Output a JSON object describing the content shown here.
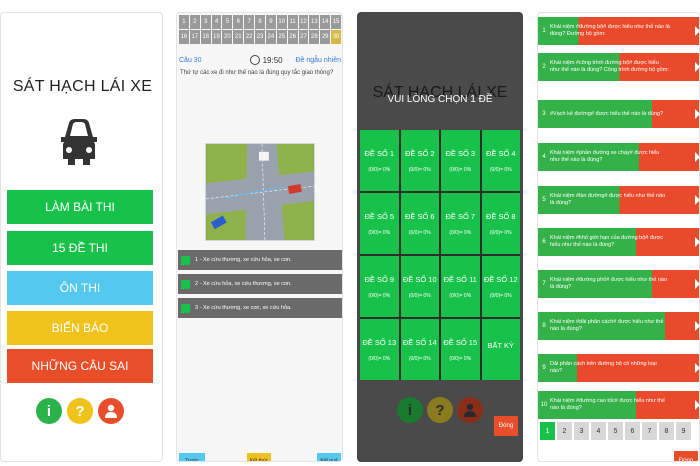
{
  "colors": {
    "green": "#18c24a",
    "cyan": "#55c8f0",
    "yellow": "#f0c21c",
    "red": "#e84e2a",
    "info_green": "#2cb24a",
    "help_yellow": "#f0c21c",
    "user_red": "#e84e2a"
  },
  "menu_screen": {
    "title": "SÁT HẠCH LÁI XE",
    "icons": [
      "car-icon",
      "info-icon",
      "help-icon",
      "user-icon"
    ],
    "buttons": [
      {
        "label": "LÀM BÀI THI",
        "color": "#18c24a"
      },
      {
        "label": "15 ĐỀ THI",
        "color": "#18c24a"
      },
      {
        "label": "ÔN THI",
        "color": "#55c8f0"
      },
      {
        "label": "BIỂN BÁO",
        "color": "#f0c21c"
      },
      {
        "label": "NHỮNG CÂU SAI",
        "color": "#e84e2a"
      }
    ],
    "circle_labels": [
      "i",
      "?",
      ""
    ]
  },
  "question_screen": {
    "grid_numbers": [
      "1",
      "2",
      "3",
      "4",
      "5",
      "6",
      "7",
      "8",
      "9",
      "10",
      "11",
      "12",
      "13",
      "14",
      "15",
      "16",
      "17",
      "18",
      "19",
      "20",
      "21",
      "22",
      "23",
      "24",
      "25",
      "26",
      "27",
      "28",
      "29",
      "30"
    ],
    "current_question": "Câu 30",
    "timer": "19:50",
    "new_set_link": "Đề ngẫu nhiên",
    "question_text": "Thứ tự các xe đi như thế nào là đúng quy tắc giao thông?",
    "answers": [
      "1 - Xe cứu thương, xe cứu hỏa, xe con.",
      "2 - Xe cứu hỏa, xe cứu thương, xe con.",
      "3 - Xe cứu thương, xe con, xe cứu hỏa."
    ],
    "nav_buttons": [
      {
        "label": "Trước",
        "color": "#55c8f0"
      },
      {
        "label": "Kết thúc",
        "color": "#f0c21c"
      },
      {
        "label": "Kết quả",
        "color": "#55c8f0"
      }
    ]
  },
  "tests_screen": {
    "title": "SÁT HẠCH LÁI XE",
    "prompt": "VUI LÒNG CHỌN 1 ĐỀ",
    "tests": [
      {
        "name": "ĐỀ SỐ 1",
        "progress": "(0/0)= 0%"
      },
      {
        "name": "ĐỀ SỐ 2",
        "progress": "(0/0)= 0%"
      },
      {
        "name": "ĐỀ SỐ 3",
        "progress": "(0/0)= 0%"
      },
      {
        "name": "ĐỀ SỐ 4",
        "progress": "(0/0)= 0%"
      },
      {
        "name": "ĐỀ SỐ 5",
        "progress": "(0/0)= 0%"
      },
      {
        "name": "ĐỀ SỐ 6",
        "progress": "(0/0)= 0%"
      },
      {
        "name": "ĐỀ SỐ 7",
        "progress": "(0/0)= 0%"
      },
      {
        "name": "ĐỀ SỐ 8",
        "progress": "(0/0)= 0%"
      },
      {
        "name": "ĐỀ SỐ 9",
        "progress": "(0/0)= 0%"
      },
      {
        "name": "ĐỀ SỐ 10",
        "progress": "(0/0)= 0%"
      },
      {
        "name": "ĐỀ SỐ 11",
        "progress": "(0/0)= 0%"
      },
      {
        "name": "ĐỀ SỐ 12",
        "progress": "(0/0)= 0%"
      },
      {
        "name": "ĐỀ SỐ 13",
        "progress": "(0/0)= 0%"
      },
      {
        "name": "ĐỀ SỐ 14",
        "progress": "(0/0)= 0%"
      },
      {
        "name": "ĐỀ SỐ 15",
        "progress": "(0/0)= 0%"
      },
      {
        "name": "BẤT KỲ",
        "progress": ""
      }
    ],
    "close_label": "Đóng"
  },
  "wrong_screen": {
    "rows": [
      {
        "num": "1",
        "text": "Khái niệm #đường bộ# được hiểu như thế nào là đúng? Đường bộ gồm:",
        "green_fraction": 0.25
      },
      {
        "num": "2",
        "text": "Khái niệm #công trình đường bộ# được hiểu như thế nào là đúng? Công trình đường bộ gồm:",
        "green_fraction": 0.5
      },
      {
        "num": "3",
        "text": "#Vạch kẻ đường# được hiểu thế nào là đúng?",
        "green_fraction": 0.7
      },
      {
        "num": "4",
        "text": "Khái niệm #phần đường xe chạy# được hiểu như thế nào là đúng?",
        "green_fraction": 0.62
      },
      {
        "num": "5",
        "text": "Khái niệm #làn đường# được hiểu như thế nào là đúng?",
        "green_fraction": 0.5
      },
      {
        "num": "6",
        "text": "Khái niệm #khổ giới hạn của đường bộ# được hiểu như thế nào là đúng?",
        "green_fraction": 0.6
      },
      {
        "num": "7",
        "text": "Khái niệm #đường phố# được hiểu như thế nào là đúng?",
        "green_fraction": 0.7
      },
      {
        "num": "8",
        "text": "Khái niệm #dải phân cách# được hiểu như thế nào là đúng?",
        "green_fraction": 0.78
      },
      {
        "num": "9",
        "text": "Dải phân cách trên đường bộ có những loại nào?",
        "green_fraction": 0.24
      },
      {
        "num": "10",
        "text": "Khái niệm #đường cao tốc# được hiểu như thế nào là đúng?",
        "green_fraction": 0.6
      }
    ],
    "pages": [
      "1",
      "2",
      "3",
      "4",
      "5",
      "6",
      "7",
      "8",
      "9"
    ],
    "close_label": "Đóng"
  }
}
